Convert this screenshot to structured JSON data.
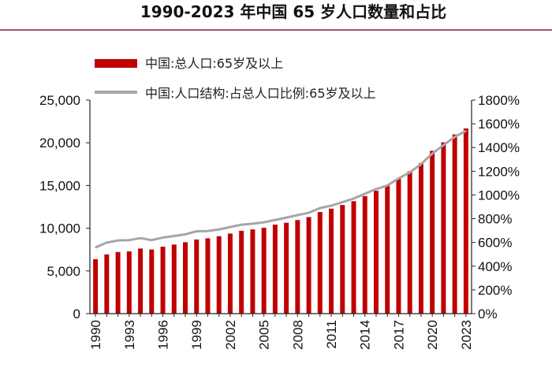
{
  "title": "1990-2023 年中国 65 岁人口数量和占比",
  "colors": {
    "bar": "#c00000",
    "line": "#a6a6a6",
    "title_rule": "#8b1a2b",
    "axis": "#222222"
  },
  "chart_data": {
    "type": "bar",
    "title": "1990-2023 年中国 65 岁人口数量和占比",
    "x": [
      1990,
      1991,
      1992,
      1993,
      1994,
      1995,
      1996,
      1997,
      1998,
      1999,
      2000,
      2001,
      2002,
      2003,
      2004,
      2005,
      2006,
      2007,
      2008,
      2009,
      2010,
      2011,
      2012,
      2013,
      2014,
      2015,
      2016,
      2017,
      2018,
      2019,
      2020,
      2021,
      2022,
      2023
    ],
    "x_tick_labels": [
      "1990",
      "1993",
      "1996",
      "1999",
      "2002",
      "2005",
      "2008",
      "2011",
      "2014",
      "2017",
      "2020",
      "2023"
    ],
    "series": [
      {
        "name": "中国:总人口:65岁及以上",
        "type": "bar",
        "axis": "left",
        "values": [
          6368,
          6938,
          7218,
          7289,
          7622,
          7510,
          7833,
          8085,
          8359,
          8679,
          8821,
          9062,
          9377,
          9692,
          9857,
          10055,
          10419,
          10636,
          10956,
          11307,
          11894,
          12288,
          12714,
          13161,
          13755,
          14386,
          15003,
          15831,
          16658,
          17603,
          19064,
          20056,
          20978,
          21676
        ]
      },
      {
        "name": "中国:人口结构:占总人口比例:65岁及以上",
        "type": "line",
        "axis": "right",
        "values": [
          557,
          599,
          617,
          620,
          636,
          620,
          641,
          654,
          668,
          694,
          696,
          710,
          730,
          750,
          758,
          770,
          790,
          810,
          830,
          850,
          890,
          910,
          940,
          970,
          1010,
          1050,
          1080,
          1140,
          1190,
          1260,
          1350,
          1420,
          1490,
          1540
        ]
      }
    ],
    "y_left": {
      "min": 0,
      "max": 25000,
      "ticks": [
        "0",
        "5,000",
        "10,000",
        "15,000",
        "20,000",
        "25,000"
      ]
    },
    "y_right": {
      "min": 0,
      "max": 1800,
      "ticks": [
        "0%",
        "200%",
        "400%",
        "600%",
        "800%",
        "1000%",
        "1200%",
        "1400%",
        "1600%",
        "1800%"
      ]
    },
    "legend": [
      {
        "label": "中国:总人口:65岁及以上",
        "kind": "bar"
      },
      {
        "label": "中国:人口结构:占总人口比例:65岁及以上",
        "kind": "line"
      }
    ],
    "legend_position": "top-left",
    "grid": false
  }
}
